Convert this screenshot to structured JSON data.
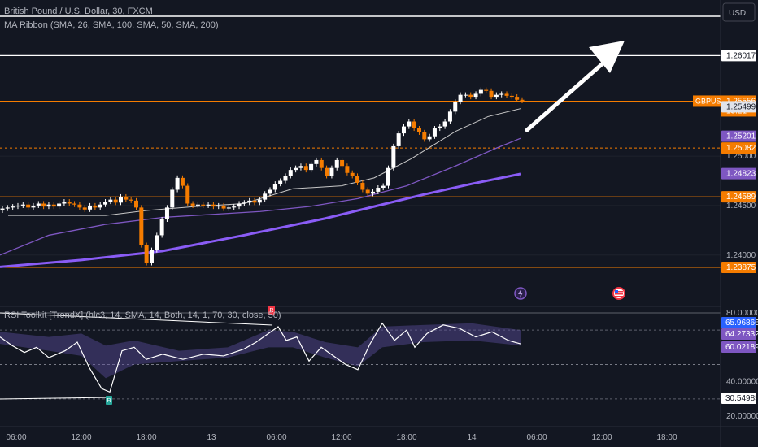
{
  "header": {
    "title": "British Pound / U.S. Dollar, 30, FXCM",
    "ma_ribbon": "MA Ribbon (SMA, 26, SMA, 100, SMA, 50, SMA, 200)",
    "currency": "USD"
  },
  "rsi_panel": {
    "title": "RSI Toolkit [TrendX] (hlc3, 14, SMA, 14, Both, 14, 1, 70, 30, close, 50)",
    "levels": [
      "80.00000",
      "40.00000",
      "20.00000"
    ],
    "tags": [
      {
        "label": "65.96866",
        "color": "#2962ff"
      },
      {
        "label": "64.27332",
        "color": "#7e57c2"
      },
      {
        "label": "60.02189",
        "color": "#7e57c2"
      },
      {
        "label": "30.54985",
        "color": "#ffffff"
      }
    ],
    "signals": [
      {
        "label": "R",
        "color": "#f23645"
      },
      {
        "label": "R",
        "color": "#26a69a"
      }
    ]
  },
  "price_axis": {
    "ticks": [
      "1.25000",
      "1.24500",
      "1.24000"
    ],
    "tags": [
      {
        "label": "1.26017",
        "value": 1.26017,
        "bg": "#ffffff",
        "fg": "#131722"
      },
      {
        "symbol": "GBPUSD",
        "label": "1.25556",
        "countdown": "13:21",
        "value": 1.25556,
        "bg": "#f57c00",
        "fg": "#ffffff"
      },
      {
        "label": "1.25499",
        "value": 1.25499,
        "bg": "#e0e3eb",
        "fg": "#131722"
      },
      {
        "label": "1.25201",
        "value": 1.25201,
        "bg": "#7e57c2",
        "fg": "#ffffff"
      },
      {
        "label": "1.25082",
        "value": 1.25082,
        "bg": "#f57c00",
        "fg": "#ffffff"
      },
      {
        "label": "1.24823",
        "value": 1.24823,
        "bg": "#7e57c2",
        "fg": "#ffffff"
      },
      {
        "label": "1.24589",
        "value": 1.24589,
        "bg": "#f57c00",
        "fg": "#ffffff"
      },
      {
        "label": "1.23875",
        "value": 1.23875,
        "bg": "#f57c00",
        "fg": "#ffffff"
      }
    ]
  },
  "time_axis": {
    "labels": [
      "06:00",
      "12:00",
      "18:00",
      "13",
      "06:00",
      "12:00",
      "18:00",
      "14",
      "06:00",
      "12:00",
      "18:00"
    ]
  },
  "colors": {
    "background": "#131722",
    "up": "#ffffff",
    "down": "#f57c00",
    "level_line": "#f57c00",
    "sma_fast": "#c8c8c8",
    "sma_mid": "#7e57c2",
    "sma_slow": "#8a5cf6",
    "rsi_band": "#5b4d9e"
  },
  "chart_data": {
    "type": "candlestick",
    "symbol": "GBPUSD",
    "timeframe": "30",
    "ylim": [
      1.2362,
      1.2625
    ],
    "horizontal_levels": [
      1.26017,
      1.25556,
      1.25082,
      1.24589,
      1.23875
    ],
    "closes": [
      1.2447,
      1.2448,
      1.2449,
      1.245,
      1.2451,
      1.2448,
      1.245,
      1.2452,
      1.2449,
      1.2451,
      1.2449,
      1.2452,
      1.2454,
      1.2452,
      1.2451,
      1.2448,
      1.2446,
      1.245,
      1.2448,
      1.2451,
      1.2454,
      1.2456,
      1.2453,
      1.2459,
      1.2456,
      1.2455,
      1.2448,
      1.241,
      1.2392,
      1.2405,
      1.242,
      1.2436,
      1.2448,
      1.2466,
      1.2478,
      1.247,
      1.2452,
      1.245,
      1.2451,
      1.245,
      1.2451,
      1.2449,
      1.245,
      1.2447,
      1.2448,
      1.2449,
      1.2452,
      1.2453,
      1.2455,
      1.2453,
      1.2456,
      1.2462,
      1.2466,
      1.2472,
      1.2475,
      1.248,
      1.2486,
      1.2488,
      1.249,
      1.2486,
      1.2492,
      1.2496,
      1.2488,
      1.248,
      1.2488,
      1.2496,
      1.249,
      1.2483,
      1.248,
      1.2473,
      1.2466,
      1.2462,
      1.2464,
      1.2468,
      1.247,
      1.2488,
      1.251,
      1.2523,
      1.253,
      1.2535,
      1.2528,
      1.2524,
      1.2517,
      1.252,
      1.2528,
      1.253,
      1.2535,
      1.2545,
      1.2555,
      1.2562,
      1.2562,
      1.256,
      1.2563,
      1.2567,
      1.2566,
      1.256,
      1.2562,
      1.2563,
      1.2561,
      1.256,
      1.2557,
      1.2556
    ]
  },
  "sma_fast": [
    [
      10,
      1.244
    ],
    [
      130,
      1.244
    ],
    [
      180,
      1.2445
    ],
    [
      240,
      1.2449
    ],
    [
      300,
      1.2452
    ],
    [
      360,
      1.2467
    ],
    [
      420,
      1.247
    ],
    [
      460,
      1.2478
    ],
    [
      505,
      1.2497
    ],
    [
      560,
      1.2525
    ],
    [
      600,
      1.254
    ],
    [
      640,
      1.2548
    ]
  ],
  "sma_mid": [
    [
      0,
      1.24
    ],
    [
      60,
      1.242
    ],
    [
      130,
      1.2431
    ],
    [
      200,
      1.2438
    ],
    [
      260,
      1.2441
    ],
    [
      320,
      1.2444
    ],
    [
      380,
      1.2449
    ],
    [
      440,
      1.2457
    ],
    [
      500,
      1.247
    ],
    [
      560,
      1.249
    ],
    [
      610,
      1.2508
    ],
    [
      640,
      1.2518
    ]
  ],
  "sma_slow": [
    [
      0,
      1.2388
    ],
    [
      100,
      1.2395
    ],
    [
      200,
      1.2404
    ],
    [
      300,
      1.242
    ],
    [
      400,
      1.2437
    ],
    [
      460,
      1.2449
    ],
    [
      520,
      1.2461
    ],
    [
      580,
      1.2472
    ],
    [
      640,
      1.2482
    ]
  ],
  "rsi_data": [
    [
      0,
      66
    ],
    [
      15,
      61
    ],
    [
      30,
      57
    ],
    [
      45,
      60
    ],
    [
      60,
      54
    ],
    [
      80,
      58
    ],
    [
      95,
      63
    ],
    [
      110,
      48
    ],
    [
      125,
      36
    ],
    [
      135,
      34
    ],
    [
      150,
      58
    ],
    [
      165,
      60
    ],
    [
      180,
      53
    ],
    [
      200,
      56
    ],
    [
      225,
      53
    ],
    [
      250,
      56
    ],
    [
      275,
      55
    ],
    [
      300,
      59
    ],
    [
      315,
      63
    ],
    [
      330,
      68
    ],
    [
      342,
      72
    ],
    [
      352,
      64
    ],
    [
      365,
      66
    ],
    [
      380,
      52
    ],
    [
      395,
      60
    ],
    [
      410,
      55
    ],
    [
      425,
      50
    ],
    [
      440,
      47
    ],
    [
      455,
      62
    ],
    [
      470,
      74
    ],
    [
      485,
      64
    ],
    [
      500,
      70
    ],
    [
      510,
      60
    ],
    [
      525,
      68
    ],
    [
      545,
      73
    ],
    [
      565,
      71
    ],
    [
      585,
      66
    ],
    [
      605,
      69
    ],
    [
      625,
      64
    ],
    [
      640,
      62
    ]
  ],
  "rsi_band_upper": [
    [
      0,
      69
    ],
    [
      60,
      66
    ],
    [
      100,
      68
    ],
    [
      130,
      61
    ],
    [
      165,
      64
    ],
    [
      220,
      58
    ],
    [
      280,
      60
    ],
    [
      330,
      70
    ],
    [
      360,
      69
    ],
    [
      400,
      63
    ],
    [
      440,
      60
    ],
    [
      470,
      72
    ],
    [
      520,
      73
    ],
    [
      580,
      74
    ],
    [
      640,
      70
    ]
  ],
  "rsi_band_lower": [
    [
      0,
      62
    ],
    [
      60,
      58
    ],
    [
      100,
      55
    ],
    [
      130,
      42
    ],
    [
      165,
      50
    ],
    [
      220,
      52
    ],
    [
      280,
      54
    ],
    [
      330,
      60
    ],
    [
      360,
      60
    ],
    [
      400,
      54
    ],
    [
      440,
      49
    ],
    [
      470,
      60
    ],
    [
      520,
      63
    ],
    [
      580,
      64
    ],
    [
      640,
      61
    ]
  ]
}
